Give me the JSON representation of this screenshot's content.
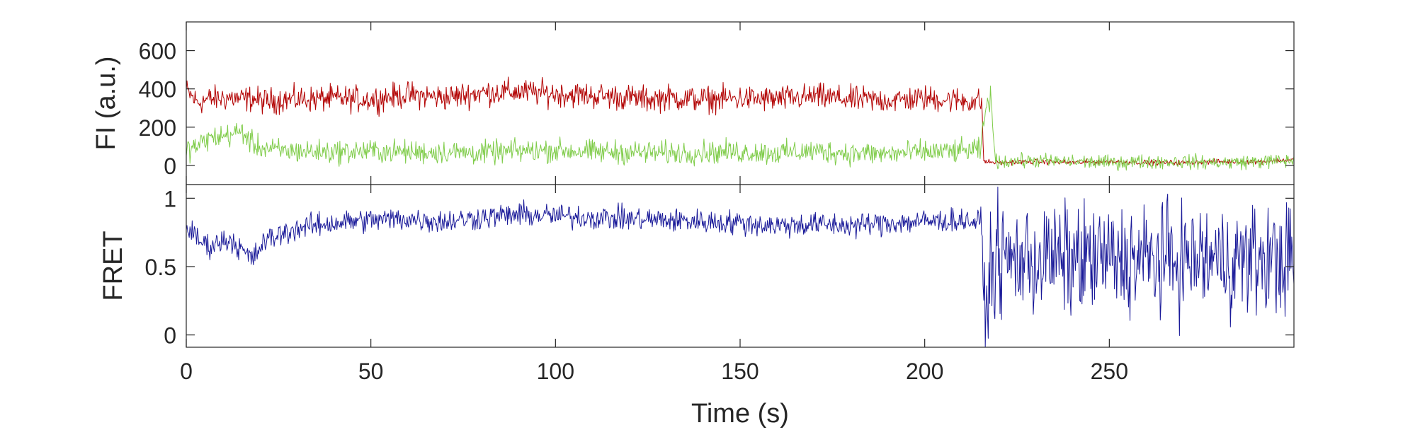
{
  "colors": {
    "acceptor": "#b20000",
    "donor": "#7fcc49",
    "fret": "#1a1a99",
    "axis": "#262626",
    "background": "#ffffff"
  },
  "chart_data": [
    {
      "id": "fluorescence",
      "type": "line",
      "ylabel": "FI (a.u.)",
      "xlim": [
        0,
        300
      ],
      "ylim": [
        -100,
        750
      ],
      "yticks": [
        0,
        200,
        400,
        600
      ],
      "xticks": [
        0,
        50,
        100,
        150,
        200,
        250
      ],
      "show_xtick_labels": false,
      "grid": false,
      "legend": "none",
      "series": [
        {
          "key": "acceptor",
          "x": [
            0,
            3,
            6,
            9,
            12,
            15,
            18,
            21,
            24,
            27,
            30,
            40,
            50,
            60,
            70,
            80,
            90,
            100,
            110,
            120,
            125,
            130,
            140,
            150,
            160,
            170,
            180,
            190,
            200,
            210,
            214,
            215.5,
            216,
            220,
            230,
            240,
            250,
            260,
            270,
            280,
            290,
            300
          ],
          "y": [
            390,
            330,
            345,
            350,
            355,
            345,
            350,
            335,
            340,
            345,
            345,
            350,
            345,
            370,
            355,
            380,
            385,
            375,
            365,
            355,
            345,
            355,
            345,
            350,
            345,
            360,
            345,
            340,
            350,
            340,
            335,
            330,
            20,
            15,
            20,
            15,
            20,
            15,
            15,
            20,
            20,
            30
          ],
          "noise_amplitude": [
            100,
            20
          ],
          "step_x": 216
        },
        {
          "key": "donor",
          "x": [
            0,
            3,
            6,
            9,
            12,
            15,
            18,
            21,
            24,
            27,
            30,
            40,
            50,
            60,
            70,
            80,
            90,
            100,
            110,
            120,
            130,
            140,
            150,
            160,
            170,
            180,
            190,
            200,
            210,
            215,
            217,
            218,
            219,
            220,
            230,
            240,
            250,
            260,
            270,
            280,
            290,
            300
          ],
          "y": [
            80,
            100,
            140,
            150,
            160,
            180,
            110,
            90,
            80,
            75,
            75,
            70,
            75,
            70,
            70,
            65,
            75,
            80,
            70,
            70,
            65,
            70,
            70,
            65,
            75,
            65,
            60,
            70,
            75,
            80,
            340,
            350,
            30,
            20,
            25,
            20,
            15,
            20,
            20,
            15,
            20,
            25
          ],
          "noise_amplitude": [
            90,
            55
          ],
          "step_x": 219
        }
      ]
    },
    {
      "id": "fret",
      "type": "line",
      "ylabel": "FRET",
      "xlabel": "Time (s)",
      "xlim": [
        0,
        300
      ],
      "ylim": [
        -0.09,
        1.1
      ],
      "yticks": [
        0,
        0.5,
        1
      ],
      "xticks": [
        0,
        50,
        100,
        150,
        200,
        250
      ],
      "grid": false,
      "legend": "none",
      "series": [
        {
          "key": "fret",
          "x": [
            0,
            3,
            6,
            9,
            12,
            15,
            18,
            21,
            24,
            27,
            30,
            40,
            50,
            60,
            70,
            80,
            90,
            100,
            110,
            120,
            130,
            140,
            150,
            160,
            170,
            180,
            190,
            200,
            210,
            215.5,
            216,
            218,
            220,
            240,
            260,
            280,
            300
          ],
          "y": [
            0.8,
            0.7,
            0.65,
            0.68,
            0.7,
            0.62,
            0.55,
            0.68,
            0.72,
            0.75,
            0.78,
            0.82,
            0.84,
            0.85,
            0.83,
            0.86,
            0.88,
            0.87,
            0.86,
            0.85,
            0.84,
            0.83,
            0.82,
            0.8,
            0.81,
            0.8,
            0.82,
            0.83,
            0.84,
            0.82,
            0.1,
            0.5,
            0.55,
            0.55,
            0.55,
            0.55,
            0.55
          ],
          "noise_amplitude": [
            0.13,
            0.6
          ],
          "step_x": 216
        }
      ]
    }
  ]
}
